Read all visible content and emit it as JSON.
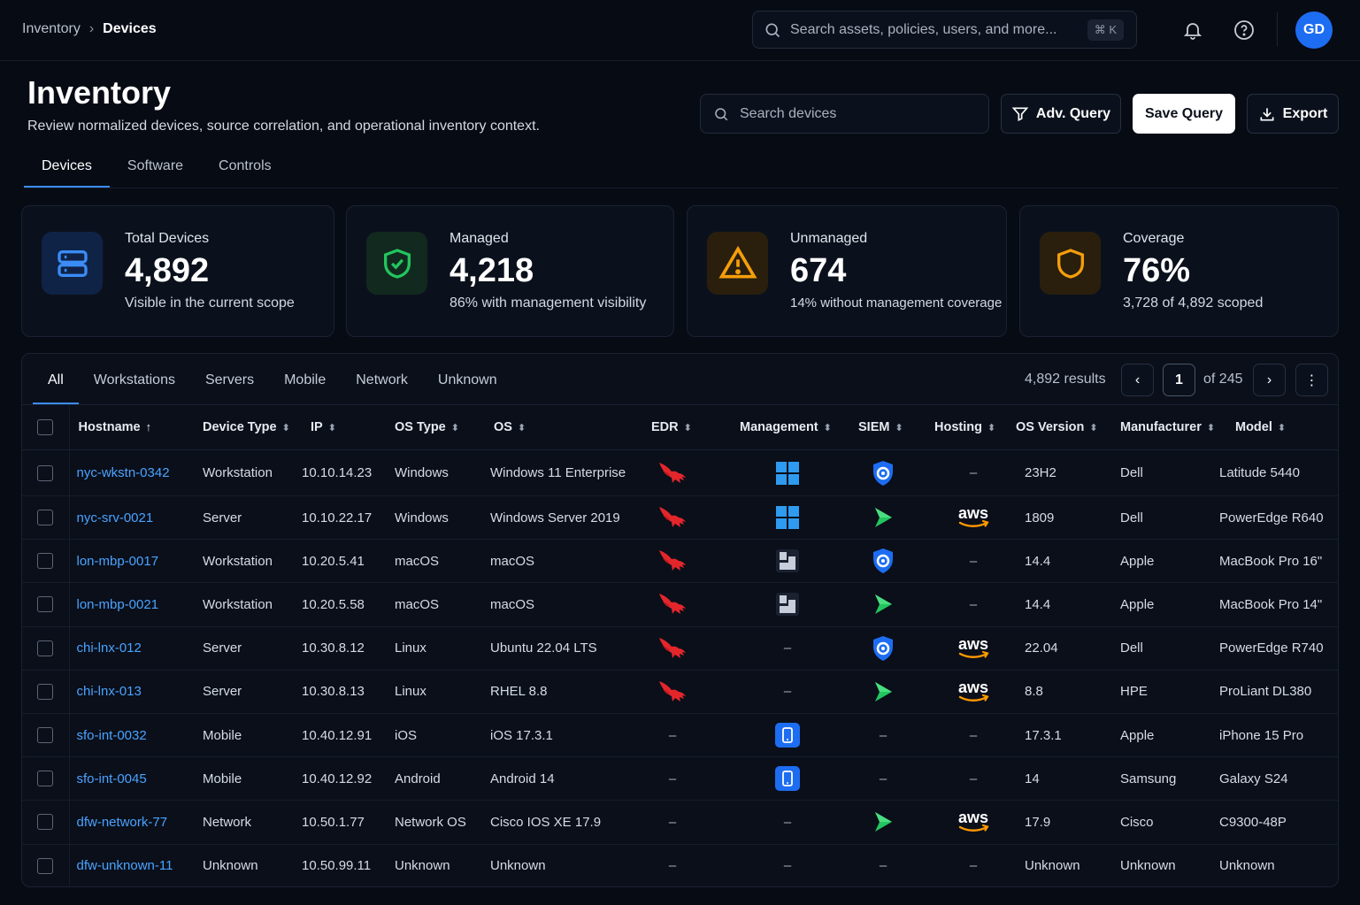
{
  "breadcrumb": {
    "root": "Inventory",
    "current": "Devices"
  },
  "global_search": {
    "placeholder": "Search assets, policies, users, and more...",
    "shortcut": "⌘ K"
  },
  "user": {
    "initials": "GD"
  },
  "header": {
    "title": "Inventory",
    "subtitle": "Review normalized devices, source correlation, and operational inventory context.",
    "search_placeholder": "Search devices",
    "adv_query_label": "Adv. Query",
    "save_query_label": "Save Query",
    "export_label": "Export"
  },
  "tabs": [
    "Devices",
    "Software",
    "Controls"
  ],
  "stats": [
    {
      "label": "Total Devices",
      "value": "4,892",
      "note": "Visible in the current scope",
      "icon": "server-icon",
      "color": "#3b8cf5"
    },
    {
      "label": "Managed",
      "value": "4,218",
      "note": "86% with management visibility",
      "icon": "shield-check-icon",
      "color": "#22c55e"
    },
    {
      "label": "Unmanaged",
      "value": "674",
      "note": "14% without management coverage",
      "icon": "warning-icon",
      "color": "#f59e0b"
    },
    {
      "label": "Coverage",
      "value": "76%",
      "note": "3,728 of 4,892 scoped",
      "icon": "shield-icon",
      "color": "#f59e0b"
    }
  ],
  "filters": [
    "All",
    "Workstations",
    "Servers",
    "Mobile",
    "Network",
    "Unknown"
  ],
  "pagination": {
    "results": "4,892 results",
    "page": "1",
    "of": "of 245"
  },
  "columns": [
    "Hostname",
    "Device Type",
    "IP",
    "OS Type",
    "OS",
    "EDR",
    "Management",
    "SIEM",
    "Hosting",
    "OS Version",
    "Manufacturer",
    "Model"
  ],
  "rows": [
    {
      "host": "nyc-wkstn-0342",
      "type": "Workstation",
      "ip": "10.10.14.23",
      "ostype": "Windows",
      "os": "Windows 11 Enterprise",
      "edr": "falcon",
      "mgmt": "windows",
      "siem": "shield",
      "hosting": "–",
      "ver": "23H2",
      "mfr": "Dell",
      "model": "Latitude 5440"
    },
    {
      "host": "nyc-srv-0021",
      "type": "Server",
      "ip": "10.10.22.17",
      "ostype": "Windows",
      "os": "Windows Server 2019",
      "edr": "falcon",
      "mgmt": "windows",
      "siem": "arrow",
      "hosting": "aws",
      "ver": "1809",
      "mfr": "Dell",
      "model": "PowerEdge R640"
    },
    {
      "host": "lon-mbp-0017",
      "type": "Workstation",
      "ip": "10.20.5.41",
      "ostype": "macOS",
      "os": "macOS",
      "edr": "falcon",
      "mgmt": "jamf",
      "siem": "shield",
      "hosting": "–",
      "ver": "14.4",
      "mfr": "Apple",
      "model": "MacBook Pro 16\""
    },
    {
      "host": "lon-mbp-0021",
      "type": "Workstation",
      "ip": "10.20.5.58",
      "ostype": "macOS",
      "os": "macOS",
      "edr": "falcon",
      "mgmt": "jamf",
      "siem": "arrow",
      "hosting": "–",
      "ver": "14.4",
      "mfr": "Apple",
      "model": "MacBook Pro 14\""
    },
    {
      "host": "chi-lnx-012",
      "type": "Server",
      "ip": "10.30.8.12",
      "ostype": "Linux",
      "os": "Ubuntu 22.04 LTS",
      "edr": "falcon",
      "mgmt": "–",
      "siem": "shield",
      "hosting": "aws",
      "ver": "22.04",
      "mfr": "Dell",
      "model": "PowerEdge R740"
    },
    {
      "host": "chi-lnx-013",
      "type": "Server",
      "ip": "10.30.8.13",
      "ostype": "Linux",
      "os": "RHEL 8.8",
      "edr": "falcon",
      "mgmt": "–",
      "siem": "arrow",
      "hosting": "aws",
      "ver": "8.8",
      "mfr": "HPE",
      "model": "ProLiant DL380"
    },
    {
      "host": "sfo-int-0032",
      "type": "Mobile",
      "ip": "10.40.12.91",
      "ostype": "iOS",
      "os": "iOS 17.3.1",
      "edr": "–",
      "mgmt": "mdm",
      "siem": "–",
      "hosting": "–",
      "ver": "17.3.1",
      "mfr": "Apple",
      "model": "iPhone 15 Pro"
    },
    {
      "host": "sfo-int-0045",
      "type": "Mobile",
      "ip": "10.40.12.92",
      "ostype": "Android",
      "os": "Android 14",
      "edr": "–",
      "mgmt": "mdm",
      "siem": "–",
      "hosting": "–",
      "ver": "14",
      "mfr": "Samsung",
      "model": "Galaxy S24"
    },
    {
      "host": "dfw-network-77",
      "type": "Network",
      "ip": "10.50.1.77",
      "ostype": "Network OS",
      "os": "Cisco IOS XE 17.9",
      "edr": "–",
      "mgmt": "–",
      "siem": "arrow",
      "hosting": "aws",
      "ver": "17.9",
      "mfr": "Cisco",
      "model": "C9300-48P"
    },
    {
      "host": "dfw-unknown-11",
      "type": "Unknown",
      "ip": "10.50.99.11",
      "ostype": "Unknown",
      "os": "Unknown",
      "edr": "–",
      "mgmt": "–",
      "siem": "–",
      "hosting": "–",
      "ver": "Unknown",
      "mfr": "Unknown",
      "model": "Unknown"
    }
  ]
}
